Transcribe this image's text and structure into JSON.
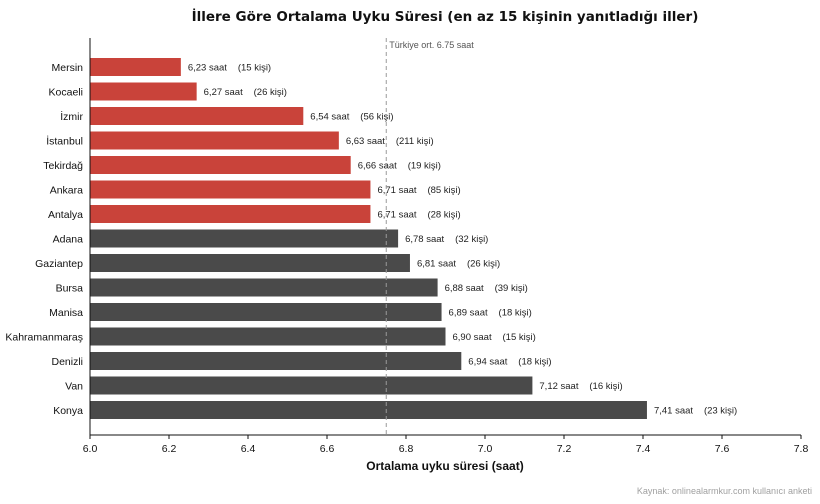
{
  "chart_data": {
    "type": "bar",
    "orientation": "horizontal",
    "title": "İllere Göre Ortalama Uyku Süresi  (en az 15 kişinin yanıtladığı iller)",
    "xlabel": "Ortalama uyku süresi (saat)",
    "ylabel": "",
    "xlim": [
      6.0,
      7.8
    ],
    "xticks": [
      6.0,
      6.2,
      6.4,
      6.6,
      6.8,
      7.0,
      7.2,
      7.4,
      7.6,
      7.8
    ],
    "xtick_labels": [
      "6.0",
      "6.2",
      "6.4",
      "6.6",
      "6.8",
      "7.0",
      "7.2",
      "7.4",
      "7.6",
      "7.8"
    ],
    "grid": false,
    "reference_line": {
      "value": 6.75,
      "label": "Türkiye ort. 6.75 saat",
      "style": "dashed"
    },
    "colors": {
      "below_average": "#c9433a",
      "above_average": "#4a4a4a"
    },
    "categories": [
      "Mersin",
      "Kocaeli",
      "İzmir",
      "İstanbul",
      "Tekirdağ",
      "Ankara",
      "Antalya",
      "Adana",
      "Gaziantep",
      "Bursa",
      "Manisa",
      "Kahramanmaraş",
      "Denizli",
      "Van",
      "Konya"
    ],
    "values": [
      6.23,
      6.27,
      6.54,
      6.63,
      6.66,
      6.71,
      6.71,
      6.78,
      6.81,
      6.88,
      6.89,
      6.9,
      6.94,
      7.12,
      7.41
    ],
    "value_labels": [
      "6,23 saat",
      "6,27 saat",
      "6,54 saat",
      "6,63 saat",
      "6,66 saat",
      "6,71 saat",
      "6,71 saat",
      "6,78 saat",
      "6,81 saat",
      "6,88 saat",
      "6,89 saat",
      "6,90 saat",
      "6,94 saat",
      "7,12 saat",
      "7,41 saat"
    ],
    "count_labels": [
      "(15 kişi)",
      "(26 kişi)",
      "(56 kişi)",
      "(211 kişi)",
      "(19 kişi)",
      "(85 kişi)",
      "(28 kişi)",
      "(32 kişi)",
      "(26 kişi)",
      "(39 kişi)",
      "(18 kişi)",
      "(15 kişi)",
      "(18 kişi)",
      "(16 kişi)",
      "(23 kişi)"
    ],
    "source": "Kaynak: onlinealarmkur.com kullanıcı anketi"
  }
}
